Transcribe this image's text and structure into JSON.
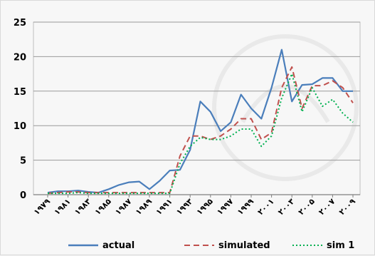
{
  "chart_data": {
    "type": "line",
    "title": "",
    "xlabel": "",
    "ylabel": "",
    "ylim": [
      0,
      25
    ],
    "yticks": [
      "0",
      "5",
      "10",
      "15",
      "20",
      "25"
    ],
    "x": [
      "1979",
      "1980",
      "1981",
      "1982",
      "1983",
      "1984",
      "1985",
      "1986",
      "1987",
      "1988",
      "1989",
      "1990",
      "1991",
      "1992",
      "1993",
      "1994",
      "1995",
      "1996",
      "1997",
      "1998",
      "1999",
      "2000",
      "2001",
      "2002",
      "2003",
      "2004",
      "2005",
      "2006",
      "2007",
      "2008",
      "2009"
    ],
    "xtick_labels": [
      "۱۹۷۹",
      "۱۹۸۱",
      "۱۹۸۳",
      "۱۹۸۵",
      "۱۹۸۷",
      "۱۹۸۹",
      "۱۹۹۱",
      "۱۹۹۳",
      "۱۹۹۵",
      "۱۹۹۷",
      "۱۹۹۹",
      "۲۰۰۱",
      "۲۰۰۳",
      "۲۰۰۵",
      "۲۰۰۷",
      "۲۰۰۹"
    ],
    "grid": "horizontal",
    "legend_position": "bottom",
    "series": [
      {
        "name": "actual",
        "color": "#4a7ebb",
        "style": "solid",
        "values": [
          0.3,
          0.5,
          0.5,
          0.6,
          0.4,
          0.3,
          0.8,
          1.4,
          1.8,
          1.9,
          0.8,
          2.0,
          3.5,
          3.6,
          6.5,
          13.5,
          12.0,
          9.2,
          10.5,
          14.5,
          12.5,
          11.0,
          15.5,
          21.0,
          13.5,
          15.9,
          16.0,
          16.9,
          16.9,
          15.0,
          15.0
        ]
      },
      {
        "name": "simulated",
        "color": "#c0504d",
        "style": "dashed",
        "values": [
          0.2,
          0.3,
          0.4,
          0.4,
          0.3,
          0.3,
          0.3,
          0.3,
          0.3,
          0.3,
          0.3,
          0.3,
          0.3,
          5.6,
          8.5,
          8.5,
          8.0,
          8.5,
          9.5,
          11.0,
          11.0,
          8.0,
          9.0,
          15.5,
          18.5,
          12.5,
          15.8,
          15.8,
          16.5,
          15.5,
          13.3
        ]
      },
      {
        "name": "sim 1",
        "color": "#00b050",
        "style": "dotted",
        "values": [
          0.2,
          0.2,
          0.2,
          0.3,
          0.2,
          0.2,
          0.2,
          0.2,
          0.2,
          0.2,
          0.2,
          0.2,
          0.2,
          4.5,
          7.0,
          8.3,
          8.0,
          8.0,
          8.5,
          9.5,
          9.5,
          7.0,
          8.5,
          14.0,
          17.5,
          12.0,
          15.5,
          12.8,
          13.8,
          11.8,
          10.5
        ]
      }
    ]
  }
}
